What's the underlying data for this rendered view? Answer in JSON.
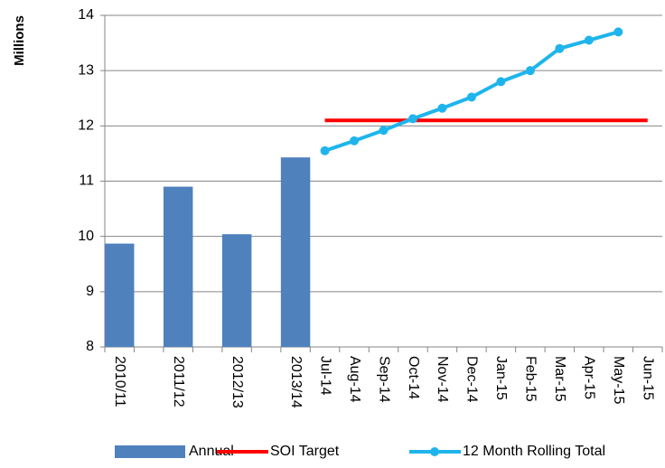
{
  "chart_data": {
    "type": "combo",
    "y_label": "Millions",
    "categories": [
      "2010/11",
      null,
      "2011/12",
      null,
      "2012/13",
      null,
      "2013/14",
      "Jul-14",
      "Aug-14",
      "Sep-14",
      "Oct-14",
      "Nov-14",
      "Dec-14",
      "Jan-15",
      "Feb-15",
      "Mar-15",
      "Apr-15",
      "May-15",
      "Jun-15"
    ],
    "series": [
      {
        "name": "Annual",
        "type": "bar",
        "color": "#4f81bd",
        "values": [
          9.87,
          null,
          10.9,
          null,
          10.04,
          null,
          11.43,
          null,
          null,
          null,
          null,
          null,
          null,
          null,
          null,
          null,
          null,
          null,
          null
        ]
      },
      {
        "name": "SOI Target",
        "type": "line",
        "color": "#ff0000",
        "marker": false,
        "values": [
          null,
          null,
          null,
          null,
          null,
          null,
          null,
          12.1,
          12.1,
          12.1,
          12.1,
          12.1,
          12.1,
          12.1,
          12.1,
          12.1,
          12.1,
          12.1,
          12.1
        ]
      },
      {
        "name": "12 Month Rolling Total",
        "type": "line",
        "color": "#1fb5ec",
        "marker": true,
        "values": [
          null,
          null,
          null,
          null,
          null,
          null,
          null,
          11.55,
          11.73,
          11.92,
          12.13,
          12.32,
          12.52,
          12.8,
          13.0,
          13.4,
          13.55,
          13.7,
          null
        ]
      }
    ],
    "ylim": [
      8,
      14
    ],
    "yticks": [
      8,
      9,
      10,
      11,
      12,
      13,
      14
    ],
    "grid": true,
    "legend": "bottom"
  }
}
